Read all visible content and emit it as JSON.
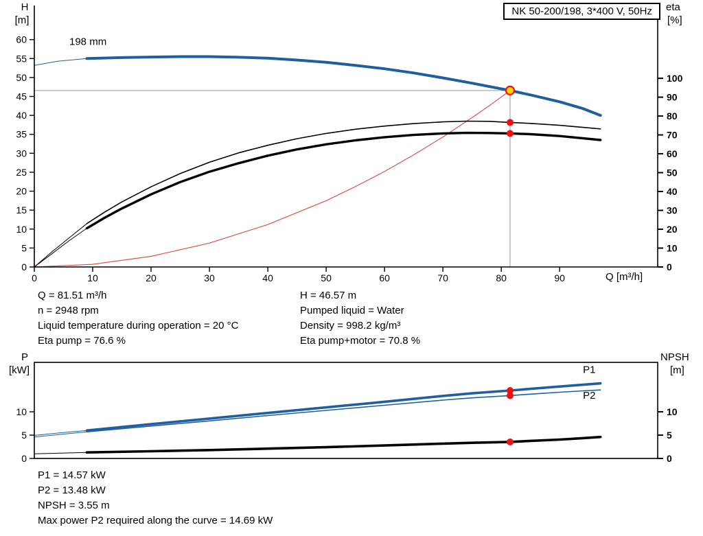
{
  "title_box": {
    "label": "NK 50-200/198, 3*400 V, 50Hz"
  },
  "colors": {
    "curve_blue": "#1f5f9f",
    "curve_black": "#000000",
    "system_red": "#d9544a",
    "duty_red": "#ee1111",
    "duty_yellow": "#ffd800",
    "crosshair_gray": "#999999",
    "axis_black": "#000000"
  },
  "operating_point": {
    "q": 81.51,
    "h": 46.57
  },
  "axes_labels": {
    "top_left_1": "H",
    "top_left_2": "[m]",
    "top_right_1": "eta",
    "top_right_2": "[%]",
    "x": "Q [m³/h]",
    "bottom_left_1": "P",
    "bottom_left_2": "[kW]",
    "bottom_right_1": "NPSH",
    "bottom_right_2": "[m]"
  },
  "info_top_left": [
    "Q = 81.51 m³/h",
    "n = 2948 rpm",
    "Liquid temperature during operation = 20 °C",
    "Eta pump = 76.6 %"
  ],
  "info_top_right": [
    "H = 46.57 m",
    "Pumped liquid = Water",
    "Density = 998.2 kg/m³",
    "Eta pump+motor = 70.8 %"
  ],
  "info_bottom": [
    "P1 = 14.57 kW",
    "P2 = 13.48 kW",
    "NPSH = 3.55 m",
    "Max power P2 required along the curve = 14.69 kW"
  ],
  "chart_data": [
    {
      "type": "line",
      "name": "head-eta-chart",
      "title": "NK 50-200/198, 3*400 V, 50Hz",
      "x_axis": {
        "label": "Q [m³/h]",
        "min": 0,
        "max": 106.8,
        "ticks": [
          0,
          10,
          20,
          30,
          40,
          50,
          60,
          70,
          80,
          90
        ]
      },
      "y_left": {
        "label": "H [m]",
        "min": 0,
        "max": 69,
        "ticks": [
          0,
          5,
          10,
          15,
          20,
          25,
          30,
          35,
          40,
          45,
          50,
          55,
          60
        ]
      },
      "y_right": {
        "label": "eta [%]",
        "min": 0,
        "max": 138.6,
        "ticks": [
          0,
          10,
          20,
          30,
          40,
          50,
          60,
          70,
          80,
          90,
          100
        ]
      },
      "crosshair": {
        "x": 81.51,
        "y": 46.57
      },
      "series": [
        {
          "name": "head-curve-leader",
          "axis": "left",
          "color": "#1f5f9f",
          "width": 1,
          "points": [
            [
              0,
              53.2
            ],
            [
              4,
              54.3
            ],
            [
              9,
              55.0
            ]
          ]
        },
        {
          "name": "eta-pump-leader",
          "axis": "right",
          "color": "#000000",
          "width": 1,
          "points": [
            [
              0,
              0
            ],
            [
              3,
              8
            ],
            [
              6,
              15.5
            ],
            [
              9,
              23
            ]
          ]
        },
        {
          "name": "eta-pump-motor-leader",
          "axis": "right",
          "color": "#000000",
          "width": 1,
          "points": [
            [
              0,
              0
            ],
            [
              3,
              7
            ],
            [
              6,
              14
            ],
            [
              9,
              20.5
            ]
          ]
        },
        {
          "name": "system-resistance-curve",
          "axis": "left",
          "color": "#d9544a",
          "width": 1.2,
          "points": [
            [
              0,
              0
            ],
            [
              10,
              0.7
            ],
            [
              20,
              2.8
            ],
            [
              30,
              6.3
            ],
            [
              40,
              11.2
            ],
            [
              50,
              17.5
            ],
            [
              55,
              21.2
            ],
            [
              60,
              25.2
            ],
            [
              65,
              29.6
            ],
            [
              70,
              34.3
            ],
            [
              75,
              39.4
            ],
            [
              78,
              42.6
            ],
            [
              81.51,
              46.57
            ]
          ]
        },
        {
          "name": "eta-pump-curve",
          "axis": "right",
          "color": "#000000",
          "width": 1.6,
          "points": [
            [
              9,
              23
            ],
            [
              12,
              29
            ],
            [
              15,
              34.5
            ],
            [
              20,
              42.5
            ],
            [
              25,
              49.5
            ],
            [
              30,
              55.5
            ],
            [
              35,
              60.5
            ],
            [
              40,
              64.5
            ],
            [
              45,
              68
            ],
            [
              50,
              70.8
            ],
            [
              55,
              73
            ],
            [
              60,
              74.7
            ],
            [
              65,
              76
            ],
            [
              70,
              76.9
            ],
            [
              74,
              77.3
            ],
            [
              78,
              77.2
            ],
            [
              81.51,
              76.6
            ],
            [
              85,
              76.1
            ],
            [
              90,
              75.1
            ],
            [
              97,
              73.2
            ]
          ]
        },
        {
          "name": "eta-pump-motor-curve",
          "axis": "right",
          "color": "#000000",
          "width": 3.4,
          "points": [
            [
              9,
              20.5
            ],
            [
              12,
              26
            ],
            [
              15,
              31
            ],
            [
              20,
              38.5
            ],
            [
              25,
              45
            ],
            [
              30,
              50.5
            ],
            [
              35,
              55
            ],
            [
              40,
              59
            ],
            [
              45,
              62.3
            ],
            [
              50,
              65
            ],
            [
              55,
              67.1
            ],
            [
              60,
              68.8
            ],
            [
              65,
              70
            ],
            [
              70,
              70.8
            ],
            [
              74,
              71.1
            ],
            [
              78,
              71.0
            ],
            [
              81.51,
              70.8
            ],
            [
              85,
              70.4
            ],
            [
              90,
              69.4
            ],
            [
              97,
              67.3
            ]
          ]
        },
        {
          "name": "head-curve-198mm",
          "axis": "left",
          "color": "#1f5f9f",
          "width": 4,
          "label": "198 mm",
          "label_pos": [
            6,
            58.6
          ],
          "label_color": "#000000",
          "points": [
            [
              9,
              55.0
            ],
            [
              15,
              55.25
            ],
            [
              20,
              55.4
            ],
            [
              25,
              55.5
            ],
            [
              30,
              55.5
            ],
            [
              35,
              55.35
            ],
            [
              40,
              55.1
            ],
            [
              45,
              54.6
            ],
            [
              50,
              54.0
            ],
            [
              55,
              53.2
            ],
            [
              60,
              52.3
            ],
            [
              65,
              51.2
            ],
            [
              70,
              49.9
            ],
            [
              75,
              48.5
            ],
            [
              81.51,
              46.57
            ],
            [
              85,
              45.4
            ],
            [
              90,
              43.6
            ],
            [
              94,
              41.8
            ],
            [
              97,
              40.0
            ]
          ]
        }
      ],
      "markers": [
        {
          "name": "duty-point-head",
          "axis": "left",
          "x": 81.51,
          "y": 46.57,
          "style": "ring",
          "r": 6
        },
        {
          "name": "duty-point-eta-pump",
          "axis": "right",
          "x": 81.51,
          "y": 76.6,
          "style": "dot",
          "r": 5
        },
        {
          "name": "duty-point-eta-pump-motor",
          "axis": "right",
          "x": 81.51,
          "y": 70.8,
          "style": "dot",
          "r": 5
        }
      ]
    },
    {
      "type": "line",
      "name": "power-npsh-chart",
      "title": "",
      "x_axis": {
        "label": "",
        "min": 0,
        "max": 106.8,
        "ticks": []
      },
      "y_left": {
        "label": "P [kW]",
        "min": 0,
        "max": 20.6,
        "ticks": [
          0,
          5,
          10
        ]
      },
      "y_right": {
        "label": "NPSH [m]",
        "min": 0,
        "max": 20.6,
        "ticks": [
          0,
          5,
          10
        ]
      },
      "series": [
        {
          "name": "p1-leader",
          "axis": "left",
          "color": "#1f5f9f",
          "width": 1,
          "points": [
            [
              0,
              4.95
            ],
            [
              4.5,
              5.5
            ],
            [
              9,
              6.0
            ]
          ]
        },
        {
          "name": "p2-leader",
          "axis": "left",
          "color": "#1f5f9f",
          "width": 1,
          "points": [
            [
              0,
              4.6
            ],
            [
              4.5,
              5.15
            ],
            [
              9,
              5.7
            ]
          ]
        },
        {
          "name": "npsh-leader",
          "axis": "right",
          "color": "#000000",
          "width": 1,
          "points": [
            [
              0,
              1.0
            ],
            [
              4.5,
              1.15
            ],
            [
              9,
              1.3
            ]
          ]
        },
        {
          "name": "p2-curve",
          "axis": "left",
          "color": "#1f5f9f",
          "width": 1.6,
          "label": "P2",
          "label_pos": [
            94,
            12.8
          ],
          "label_color": "#1f5f9f",
          "points": [
            [
              9,
              5.7
            ],
            [
              20,
              6.95
            ],
            [
              30,
              8.05
            ],
            [
              40,
              9.2
            ],
            [
              50,
              10.3
            ],
            [
              60,
              11.4
            ],
            [
              70,
              12.5
            ],
            [
              75,
              13.0
            ],
            [
              81.51,
              13.48
            ],
            [
              85,
              13.78
            ],
            [
              90,
              14.2
            ],
            [
              94,
              14.5
            ],
            [
              97,
              14.69
            ]
          ]
        },
        {
          "name": "p1-curve",
          "axis": "left",
          "color": "#1f5f9f",
          "width": 3.6,
          "label": "P1",
          "label_pos": [
            94,
            18.3
          ],
          "label_color": "#1f5f9f",
          "points": [
            [
              9,
              6.0
            ],
            [
              20,
              7.35
            ],
            [
              30,
              8.55
            ],
            [
              40,
              9.75
            ],
            [
              50,
              10.95
            ],
            [
              60,
              12.15
            ],
            [
              70,
              13.4
            ],
            [
              75,
              13.97
            ],
            [
              81.51,
              14.57
            ],
            [
              85,
              14.92
            ],
            [
              90,
              15.42
            ],
            [
              94,
              15.8
            ],
            [
              97,
              16.1
            ]
          ]
        },
        {
          "name": "npsh-curve",
          "axis": "right",
          "color": "#000000",
          "width": 3.6,
          "points": [
            [
              9,
              1.3
            ],
            [
              20,
              1.55
            ],
            [
              30,
              1.8
            ],
            [
              40,
              2.1
            ],
            [
              50,
              2.42
            ],
            [
              60,
              2.78
            ],
            [
              70,
              3.18
            ],
            [
              75,
              3.36
            ],
            [
              81.51,
              3.55
            ],
            [
              85,
              3.76
            ],
            [
              90,
              4.05
            ],
            [
              94,
              4.35
            ],
            [
              97,
              4.6
            ]
          ]
        }
      ],
      "markers": [
        {
          "name": "duty-point-p1",
          "axis": "left",
          "x": 81.51,
          "y": 14.57,
          "style": "dot",
          "r": 5
        },
        {
          "name": "duty-point-p2",
          "axis": "left",
          "x": 81.51,
          "y": 13.48,
          "style": "dot",
          "r": 5
        },
        {
          "name": "duty-point-npsh",
          "axis": "right",
          "x": 81.51,
          "y": 3.55,
          "style": "dot",
          "r": 5
        }
      ]
    }
  ]
}
